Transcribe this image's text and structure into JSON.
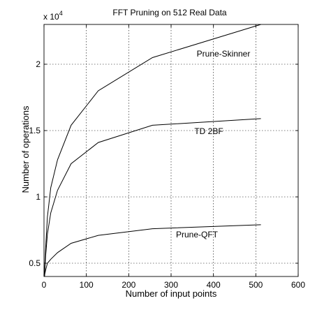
{
  "chart_data": {
    "type": "line",
    "title": "FFT Pruning on 512 Real Data",
    "xlabel": "Number of input points",
    "ylabel": "Number of operations",
    "scale_label": "x 10",
    "scale_exponent": "4",
    "xlim": [
      0,
      600
    ],
    "ylim": [
      0.4,
      2.3
    ],
    "x_ticks": [
      0,
      100,
      200,
      300,
      400,
      500,
      600
    ],
    "y_ticks": [
      0.5,
      1,
      1.5,
      2
    ],
    "y_tick_labels": [
      "0.5",
      "1",
      "1.5",
      "2"
    ],
    "grid": true,
    "series": [
      {
        "name": "Prune-Skinner",
        "x": [
          1,
          2,
          4,
          8,
          16,
          32,
          64,
          128,
          256,
          512
        ],
        "y": [
          0.4,
          0.48,
          0.62,
          0.85,
          1.07,
          1.28,
          1.54,
          1.8,
          2.05,
          2.3
        ]
      },
      {
        "name": "TD 2BF",
        "x": [
          1,
          2,
          4,
          8,
          16,
          32,
          64,
          128,
          256,
          512
        ],
        "y": [
          0.4,
          0.45,
          0.56,
          0.72,
          0.88,
          1.05,
          1.25,
          1.41,
          1.54,
          1.59
        ]
      },
      {
        "name": "Prune-QFT",
        "x": [
          1,
          2,
          4,
          8,
          16,
          32,
          64,
          128,
          256,
          512
        ],
        "y": [
          0.4,
          0.42,
          0.45,
          0.5,
          0.53,
          0.58,
          0.65,
          0.71,
          0.76,
          0.79
        ]
      }
    ]
  }
}
